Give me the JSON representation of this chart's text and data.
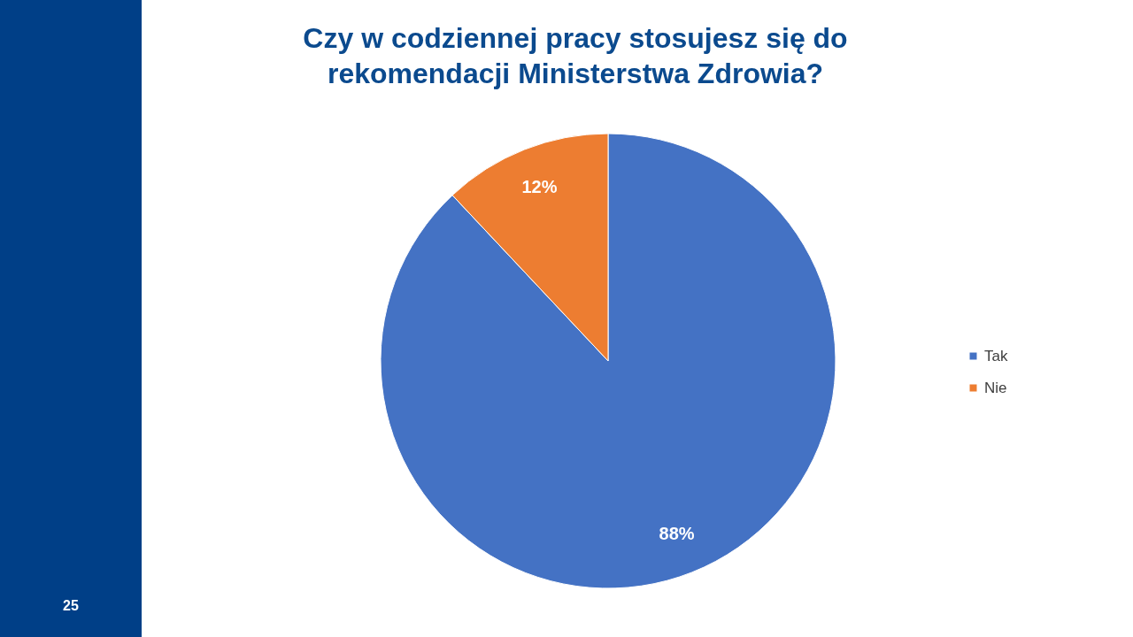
{
  "chart_data": {
    "type": "pie",
    "title": "Czy w codziennej pracy stosujesz się do rekomendacji Ministerstwa Zdrowia?",
    "categories": [
      "Tak",
      "Nie"
    ],
    "values": [
      88,
      12
    ],
    "colors": [
      "#4472c4",
      "#ed7d31"
    ],
    "value_labels": [
      "88%",
      "12%"
    ],
    "legend": "right",
    "annotations": [
      "25"
    ]
  }
}
